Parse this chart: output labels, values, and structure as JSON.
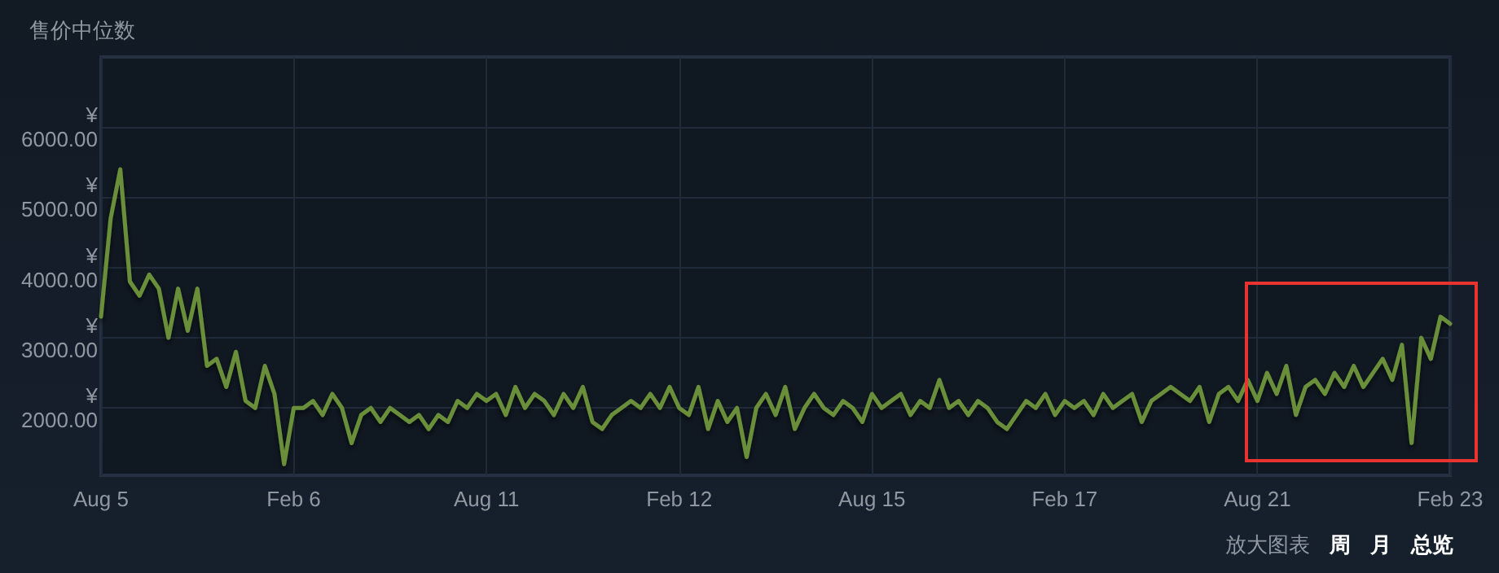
{
  "chart_data": {
    "type": "line",
    "title": "售价中位数",
    "categories": [
      "Aug 5",
      null,
      null,
      null,
      null,
      null,
      null,
      null,
      null,
      null,
      null,
      null,
      null,
      null,
      null,
      null,
      null,
      null,
      null,
      null,
      "Feb 6",
      null,
      null,
      null,
      null,
      null,
      null,
      null,
      null,
      null,
      null,
      null,
      null,
      null,
      null,
      null,
      null,
      null,
      null,
      null,
      "Aug 11",
      null,
      null,
      null,
      null,
      null,
      null,
      null,
      null,
      null,
      null,
      null,
      null,
      null,
      null,
      null,
      null,
      null,
      null,
      null,
      "Feb 12",
      null,
      null,
      null,
      null,
      null,
      null,
      null,
      null,
      null,
      null,
      null,
      null,
      null,
      null,
      null,
      null,
      null,
      null,
      null,
      "Aug 15",
      null,
      null,
      null,
      null,
      null,
      null,
      null,
      null,
      null,
      null,
      null,
      null,
      null,
      null,
      null,
      null,
      null,
      null,
      null,
      "Feb 17",
      null,
      null,
      null,
      null,
      null,
      null,
      null,
      null,
      null,
      null,
      null,
      null,
      null,
      null,
      null,
      null,
      null,
      null,
      null,
      "Aug 21",
      null,
      null,
      null,
      null,
      null,
      null,
      null,
      null,
      null,
      null,
      null,
      null,
      null,
      null,
      null,
      null,
      null,
      null,
      null,
      "Feb 23"
    ],
    "series": [
      {
        "color": "#6b8f3a",
        "values": [
          3300,
          4700,
          5400,
          3800,
          3600,
          3900,
          3700,
          3000,
          3700,
          3100,
          3700,
          2600,
          2700,
          2300,
          2800,
          2100,
          2000,
          2600,
          2200,
          1200,
          2000,
          2000,
          2100,
          1900,
          2200,
          2000,
          1500,
          1900,
          2000,
          1800,
          2000,
          1900,
          1800,
          1900,
          1700,
          1900,
          1800,
          2100,
          2000,
          2200,
          2100,
          2200,
          1900,
          2300,
          2000,
          2200,
          2100,
          1900,
          2200,
          2000,
          2300,
          1800,
          1700,
          1900,
          2000,
          2100,
          2000,
          2200,
          2000,
          2300,
          2000,
          1900,
          2300,
          1700,
          2100,
          1800,
          2000,
          1300,
          2000,
          2200,
          1900,
          2300,
          1700,
          2000,
          2200,
          2000,
          1900,
          2100,
          2000,
          1800,
          2200,
          2000,
          2100,
          2200,
          1900,
          2100,
          2000,
          2400,
          2000,
          2100,
          1900,
          2100,
          2000,
          1800,
          1700,
          1900,
          2100,
          2000,
          2200,
          1900,
          2100,
          2000,
          2100,
          1900,
          2200,
          2000,
          2100,
          2200,
          1800,
          2100,
          2200,
          2300,
          2200,
          2100,
          2300,
          1800,
          2200,
          2300,
          2100,
          2400,
          2100,
          2500,
          2200,
          2600,
          1900,
          2300,
          2400,
          2200,
          2500,
          2300,
          2600,
          2300,
          2500,
          2700,
          2400,
          2900,
          1500,
          3000,
          2700,
          3300,
          3200
        ]
      }
    ],
    "ylim": [
      1040,
      7000
    ],
    "yticks": [
      {
        "value": 2000,
        "label": "¥\n2000.00"
      },
      {
        "value": 3000,
        "label": "¥\n3000.00"
      },
      {
        "value": 4000,
        "label": "¥\n4000.00"
      },
      {
        "value": 5000,
        "label": "¥\n5000.00"
      },
      {
        "value": 6000,
        "label": "¥\n6000.00"
      }
    ],
    "grid": true,
    "marker": "none",
    "line_style": "solid",
    "annotations": [
      "放大图表",
      "周",
      "月",
      "总览"
    ]
  }
}
